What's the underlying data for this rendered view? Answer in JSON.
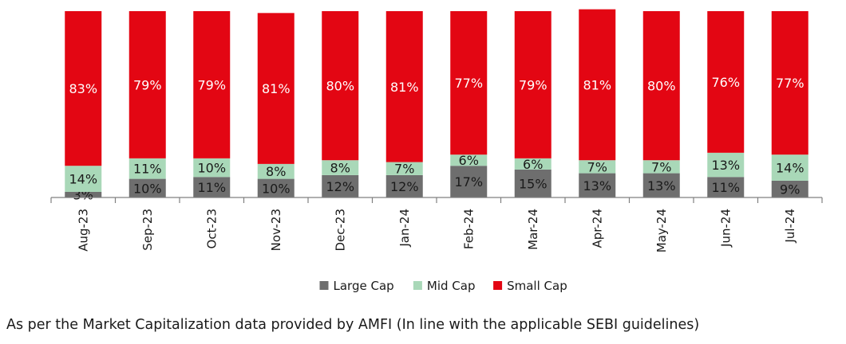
{
  "chart_data": {
    "type": "bar",
    "stacked": true,
    "categories": [
      "Aug-23",
      "Sep-23",
      "Oct-23",
      "Nov-23",
      "Dec-23",
      "Jan-24",
      "Feb-24",
      "Mar-24",
      "Apr-24",
      "May-24",
      "Jun-24",
      "Jul-24"
    ],
    "series": [
      {
        "name": "Large Cap",
        "color": "#6e6e6e",
        "label_color": "#1a1a1a",
        "values": [
          3,
          10,
          11,
          10,
          12,
          12,
          17,
          15,
          13,
          13,
          11,
          9
        ]
      },
      {
        "name": "Mid Cap",
        "color": "#a9d8b8",
        "label_color": "#1a1a1a",
        "values": [
          14,
          11,
          10,
          8,
          8,
          7,
          6,
          6,
          7,
          7,
          13,
          14
        ]
      },
      {
        "name": "Small Cap",
        "color": "#e30613",
        "label_color": "#ffffff",
        "values": [
          83,
          79,
          79,
          81,
          80,
          81,
          77,
          79,
          81,
          80,
          76,
          77
        ]
      }
    ],
    "value_suffix": "%",
    "ylim": [
      0,
      100
    ],
    "grid": false,
    "legend_position": "bottom-center",
    "xlabel": "",
    "ylabel": ""
  },
  "footnote": "As per the Market Capitalization data provided by AMFI (In line with the applicable SEBI guidelines)"
}
